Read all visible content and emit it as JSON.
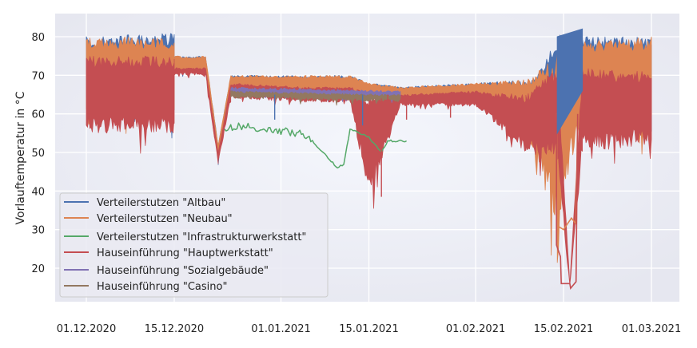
{
  "chart_data": {
    "type": "line",
    "title": "",
    "xlabel": "",
    "ylabel": "Vorlauftemperatur in °C",
    "ylim": [
      12,
      86
    ],
    "yticks": [
      20,
      30,
      40,
      50,
      60,
      70,
      80
    ],
    "xticks": [
      "01.12.2020",
      "15.12.2020",
      "01.01.2021",
      "15.01.2021",
      "01.02.2021",
      "15.02.2021",
      "01.03.2021"
    ],
    "grid": true,
    "legend_position": "lower left",
    "background": "#eaeaf2",
    "series": [
      {
        "name": "Verteilerstutzen \"Altbau\"",
        "color": "#4c72b0",
        "segments": [
          {
            "x": [
              "01.12.2020",
              "15.12.2020",
              "15.12.2020",
              "20.12.2020",
              "22.12.2020",
              "24.12.2020",
              "05.01.2021",
              "12.01.2021",
              "15.01.2021",
              "20.01.2021",
              "01.02.2021",
              "10.02.2021",
              "15.02.2021",
              "18.02.2021",
              "01.03.2021"
            ],
            "hi": [
              80,
              81,
              75,
              75,
              52,
              70,
              70,
              70,
              68,
              67,
              68,
              69,
              82,
              80,
              80
            ],
            "lo": [
              60,
              60,
              71,
              71,
              48,
              66,
              65,
              65,
              65,
              64,
              64,
              55,
              55,
              60,
              55
            ]
          }
        ]
      },
      {
        "name": "Verteilerstutzen \"Neubau\"",
        "color": "#dd8452",
        "segments": [
          {
            "x": [
              "01.12.2020",
              "15.12.2020",
              "15.12.2020",
              "20.12.2020",
              "22.12.2020",
              "24.12.2020",
              "05.01.2021",
              "12.01.2021",
              "15.01.2021",
              "20.01.2021",
              "01.02.2021",
              "09.02.2021",
              "14.02.2021",
              "18.02.2021",
              "01.03.2021"
            ],
            "hi": [
              80,
              80,
              75,
              75,
              52,
              70,
              70,
              70,
              68,
              67,
              68,
              69,
              76,
              79,
              80
            ],
            "lo": [
              60,
              60,
              71,
              71,
              48,
              66,
              65,
              65,
              65,
              64,
              64,
              55,
              31,
              60,
              55
            ]
          }
        ]
      },
      {
        "name": "Verteilerstutzen \"Infrastrukturwerkstatt\"",
        "color": "#55a868",
        "points": {
          "x": [
            "23.12.2020",
            "25.12.2020",
            "30.12.2020",
            "04.01.2021",
            "06.01.2021",
            "10.01.2021",
            "11.01.2021",
            "12.01.2021",
            "15.01.2021",
            "17.01.2021",
            "18.01.2021",
            "19.01.2021",
            "21.01.2021"
          ],
          "y": [
            56,
            57,
            56,
            55,
            53,
            46,
            47,
            56,
            54,
            50,
            53,
            53,
            53
          ]
        }
      },
      {
        "name": "Hauseinführung \"Hauptwerkstatt\"",
        "color": "#c44e52",
        "segments": [
          {
            "x": [
              "01.12.2020",
              "15.12.2020",
              "15.12.2020",
              "20.12.2020",
              "22.12.2020",
              "24.12.2020",
              "05.01.2021",
              "12.01.2021",
              "15.01.2021",
              "20.01.2021",
              "01.02.2021",
              "09.02.2021",
              "14.02.2021",
              "16.02.2021",
              "18.02.2021",
              "01.03.2021"
            ],
            "hi": [
              75,
              75,
              72,
              72,
              50,
              68,
              67,
              67,
              66,
              65,
              66,
              65,
              72,
              16,
              72,
              71
            ],
            "lo": [
              55,
              55,
              70,
              70,
              47,
              64,
              63,
              63,
              38,
              62,
              62,
              50,
              48,
              15,
              50,
              52
            ]
          }
        ]
      },
      {
        "name": "Hauseinführung \"Sozialgebäude\"",
        "color": "#8172b3",
        "segments": [
          {
            "x": [
              "24.12.2020",
              "20.01.2021"
            ],
            "hi": [
              67,
              66
            ],
            "lo": [
              65,
              64
            ]
          }
        ]
      },
      {
        "name": "Hauseinführung \"Casino\"",
        "color": "#937860",
        "segments": [
          {
            "x": [
              "24.12.2020",
              "20.01.2021"
            ],
            "hi": [
              66,
              65
            ],
            "lo": [
              64,
              63
            ]
          }
        ]
      }
    ]
  },
  "legend": {
    "items": [
      {
        "label": "Verteilerstutzen \"Altbau\"",
        "color": "#4c72b0"
      },
      {
        "label": "Verteilerstutzen \"Neubau\"",
        "color": "#dd8452"
      },
      {
        "label": "Verteilerstutzen \"Infrastrukturwerkstatt\"",
        "color": "#55a868"
      },
      {
        "label": "Hauseinführung \"Hauptwerkstatt\"",
        "color": "#c44e52"
      },
      {
        "label": "Hauseinführung \"Sozialgebäude\"",
        "color": "#8172b3"
      },
      {
        "label": "Hauseinführung \"Casino\"",
        "color": "#937860"
      }
    ]
  },
  "axes": {
    "ylabel": "Vorlauftemperatur in °C",
    "yticks": [
      "20",
      "30",
      "40",
      "50",
      "60",
      "70",
      "80"
    ],
    "xticks": [
      "01.12.2020",
      "15.12.2020",
      "01.01.2021",
      "15.01.2021",
      "01.02.2021",
      "15.02.2021",
      "01.03.2021"
    ]
  }
}
